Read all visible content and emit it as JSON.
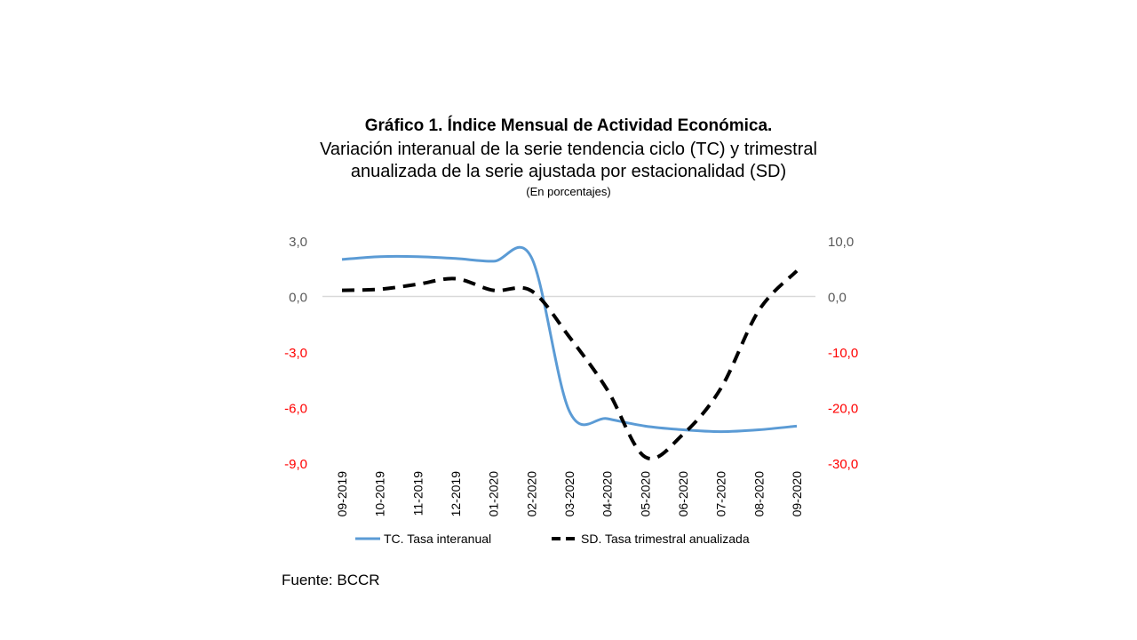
{
  "title": "Gráfico 1. Índice Mensual de Actividad Económica.",
  "subtitle1": "Variación interanual de la serie tendencia ciclo (TC) y trimestral",
  "subtitle2": "anualizada de la serie ajustada por estacionalidad (SD)",
  "unit": "(En porcentajes)",
  "source": "Fuente: BCCR",
  "colors": {
    "tc": "#5b9bd5",
    "sd": "#000000",
    "negative": "#ff0000",
    "positive": "#595959"
  },
  "chart_data": {
    "type": "line",
    "categories": [
      "09-2019",
      "10-2019",
      "11-2019",
      "12-2019",
      "01-2020",
      "02-2020",
      "03-2020",
      "04-2020",
      "05-2020",
      "06-2020",
      "07-2020",
      "08-2020",
      "09-2020"
    ],
    "series": [
      {
        "name": "TC. Tasa interanual",
        "axis": "left",
        "style": "solid",
        "values": [
          2.0,
          2.15,
          2.15,
          2.05,
          1.9,
          2.1,
          -6.2,
          -6.6,
          -7.0,
          -7.2,
          -7.3,
          -7.2,
          -7.0
        ]
      },
      {
        "name": "SD. Tasa trimestral anualizada",
        "axis": "right",
        "style": "dashed",
        "values": [
          1.1,
          1.3,
          2.2,
          3.2,
          1.1,
          1.0,
          -7.3,
          -16.8,
          -28.9,
          -24.8,
          -16.5,
          -2.5,
          4.6
        ]
      }
    ],
    "left_axis": {
      "ylim": [
        -9,
        3
      ],
      "ticks": [
        "3,0",
        "0,0",
        "-3,0",
        "-6,0",
        "-9,0"
      ],
      "tick_values": [
        3,
        0,
        -3,
        -6,
        -9
      ]
    },
    "right_axis": {
      "ylim": [
        -30,
        10
      ],
      "ticks": [
        "10,0",
        "0,0",
        "-10,0",
        "-20,0",
        "-30,0"
      ],
      "tick_values": [
        10,
        0,
        -10,
        -20,
        -30
      ]
    },
    "legend_position": "bottom"
  }
}
